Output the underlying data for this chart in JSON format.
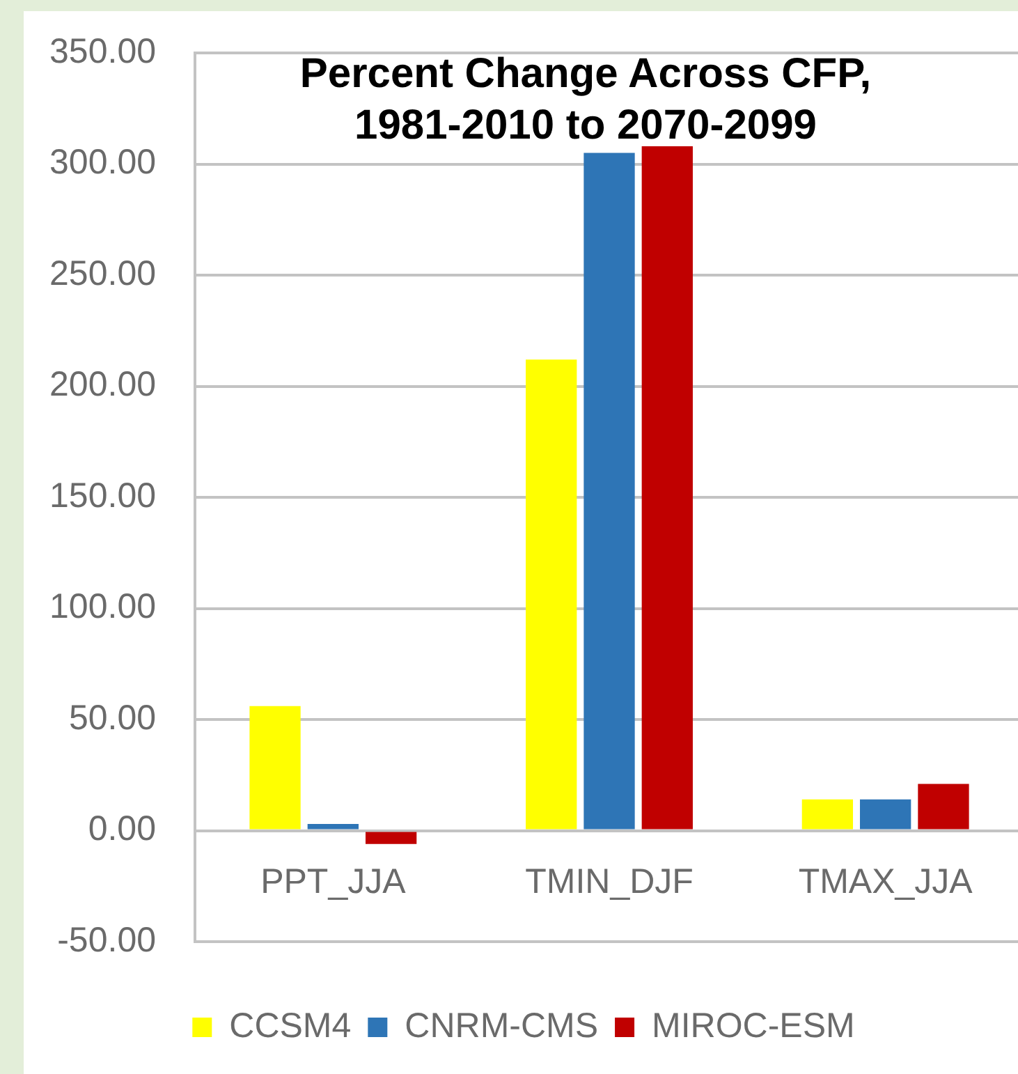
{
  "chart_data": {
    "type": "bar",
    "title": "Percent Change Across CFP,\n1981-2010 to 2070-2099",
    "categories": [
      "PPT_JJA",
      "TMIN_DJF",
      "TMAX_JJA"
    ],
    "series": [
      {
        "name": "CCSM4",
        "color": "#ffff00",
        "values": [
          56,
          212,
          14
        ]
      },
      {
        "name": "CNRM-CMS",
        "color": "#2e75b6",
        "values": [
          3,
          305,
          14
        ]
      },
      {
        "name": "MIROC-ESM",
        "color": "#c00000",
        "values": [
          -6,
          308,
          21
        ]
      }
    ],
    "ylim": [
      -50,
      350
    ],
    "yticks": [
      {
        "value": -50,
        "label": "-50.00"
      },
      {
        "value": 0,
        "label": "0.00"
      },
      {
        "value": 50,
        "label": "50.00"
      },
      {
        "value": 100,
        "label": "100.00"
      },
      {
        "value": 150,
        "label": "150.00"
      },
      {
        "value": 200,
        "label": "200.00"
      },
      {
        "value": 250,
        "label": "250.00"
      },
      {
        "value": 300,
        "label": "300.00"
      },
      {
        "value": 350,
        "label": "350.00"
      }
    ],
    "grid": "y",
    "legend": "bottom"
  }
}
